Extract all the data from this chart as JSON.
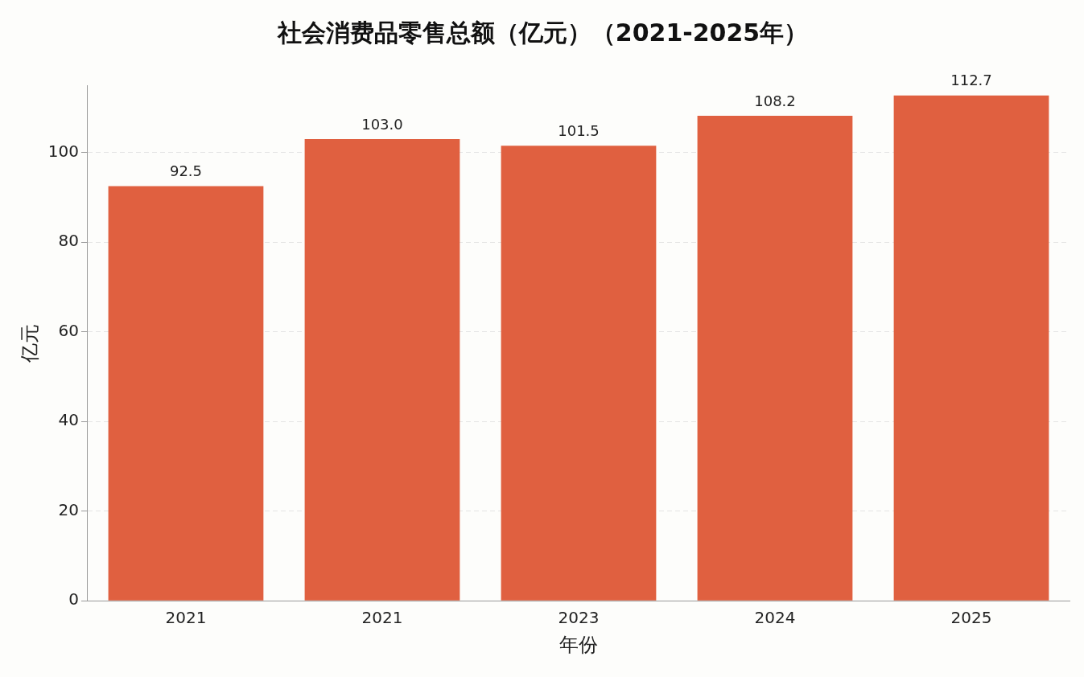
{
  "chart_data": {
    "type": "bar",
    "title": "社会消费品零售总额（亿元）（2021-2025年）",
    "xlabel": "年份",
    "ylabel": "亿元",
    "categories": [
      "2021",
      "2021",
      "2023",
      "2024",
      "2025"
    ],
    "values": [
      92.5,
      103.0,
      101.5,
      108.2,
      112.7
    ],
    "value_labels": [
      "92.5",
      "103.0",
      "101.5",
      "108.2",
      "112.7"
    ],
    "color": "#e06040",
    "ylim": [
      0,
      115
    ],
    "yticks": [
      0,
      20,
      40,
      60,
      80,
      100
    ],
    "grid": "y",
    "legend": false
  }
}
